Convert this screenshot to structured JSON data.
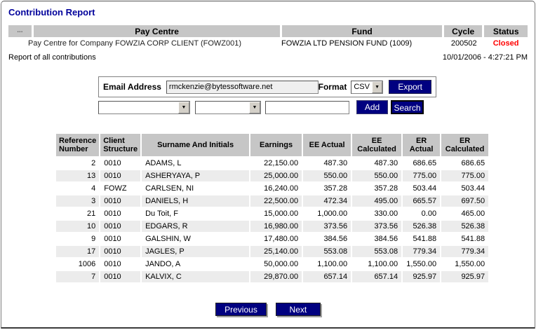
{
  "page": {
    "title": "Contribution Report",
    "report_label": "Report of all contributions",
    "generated_at": "10/01/2006 - 4:27:21 PM"
  },
  "summary": {
    "columns": {
      "dots": "...",
      "pay_centre": "Pay Centre",
      "fund": "Fund",
      "cycle": "Cycle",
      "status": "Status"
    },
    "values": {
      "pay_centre": "Pay Centre for Company FOWZIA CORP CLIENT (FOWZ001)",
      "fund": "FOWZIA LTD PENSION FUND (1009)",
      "cycle": "200502",
      "status": "Closed"
    },
    "status_color": "#ff0000"
  },
  "export": {
    "email_label": "Email Address",
    "email_value": "rmckenzie@bytessoftware.net",
    "format_label": "Format",
    "format_value": "CSV",
    "export_button": "Export"
  },
  "filters": {
    "add_button": "Add",
    "search_button": "Search"
  },
  "table": {
    "columns": [
      "Reference Number",
      "Client Structure",
      "Surname And Initials",
      "Earnings",
      "EE Actual",
      "EE Calculated",
      "ER Actual",
      "ER Calculated"
    ],
    "align": [
      "right",
      "left",
      "left",
      "right",
      "right",
      "right",
      "right",
      "right"
    ],
    "rows": [
      [
        "2",
        "0010",
        "ADAMS, L",
        "22,150.00",
        "487.30",
        "487.30",
        "686.65",
        "686.65"
      ],
      [
        "13",
        "0010",
        "ASHERYAYA, P",
        "25,000.00",
        "550.00",
        "550.00",
        "775.00",
        "775.00"
      ],
      [
        "4",
        "FOWZ",
        "CARLSEN, NI",
        "16,240.00",
        "357.28",
        "357.28",
        "503.44",
        "503.44"
      ],
      [
        "3",
        "0010",
        "DANIELS, H",
        "22,500.00",
        "472.34",
        "495.00",
        "665.57",
        "697.50"
      ],
      [
        "21",
        "0010",
        "Du Toit, F",
        "15,000.00",
        "1,000.00",
        "330.00",
        "0.00",
        "465.00"
      ],
      [
        "10",
        "0010",
        "EDGARS, R",
        "16,980.00",
        "373.56",
        "373.56",
        "526.38",
        "526.38"
      ],
      [
        "9",
        "0010",
        "GALSHIN, W",
        "17,480.00",
        "384.56",
        "384.56",
        "541.88",
        "541.88"
      ],
      [
        "17",
        "0010",
        "JAGLES, P",
        "25,140.00",
        "553.08",
        "553.08",
        "779.34",
        "779.34"
      ],
      [
        "1006",
        "0010",
        "JANDO, A",
        "50,000.00",
        "1,100.00",
        "1,100.00",
        "1,550.00",
        "1,550.00"
      ],
      [
        "7",
        "0010",
        "KALVIX, C",
        "29,870.00",
        "657.14",
        "657.14",
        "925.97",
        "925.97"
      ]
    ]
  },
  "pager": {
    "previous": "Previous",
    "next": "Next"
  },
  "colors": {
    "accent_navy": "#000080",
    "header_gray": "#c6c6c6",
    "status_red": "#ff0000",
    "alt_row": "#ececec"
  }
}
